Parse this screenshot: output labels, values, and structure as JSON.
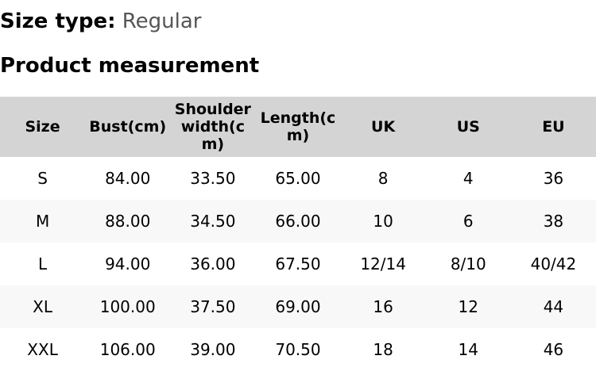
{
  "size_type": {
    "label": "Size type:",
    "value": "Regular"
  },
  "title": "Product measurement",
  "table": {
    "headers": [
      "Size",
      "Bust(cm)",
      "Shoulder width(cm)",
      "Length(cm)",
      "UK",
      "US",
      "EU"
    ],
    "rows": [
      [
        "S",
        "84.00",
        "33.50",
        "65.00",
        "8",
        "4",
        "36"
      ],
      [
        "M",
        "88.00",
        "34.50",
        "66.00",
        "10",
        "6",
        "38"
      ],
      [
        "L",
        "94.00",
        "36.00",
        "67.50",
        "12/14",
        "8/10",
        "40/42"
      ],
      [
        "XL",
        "100.00",
        "37.50",
        "69.00",
        "16",
        "12",
        "44"
      ],
      [
        "XXL",
        "106.00",
        "39.00",
        "70.50",
        "18",
        "14",
        "46"
      ]
    ]
  }
}
